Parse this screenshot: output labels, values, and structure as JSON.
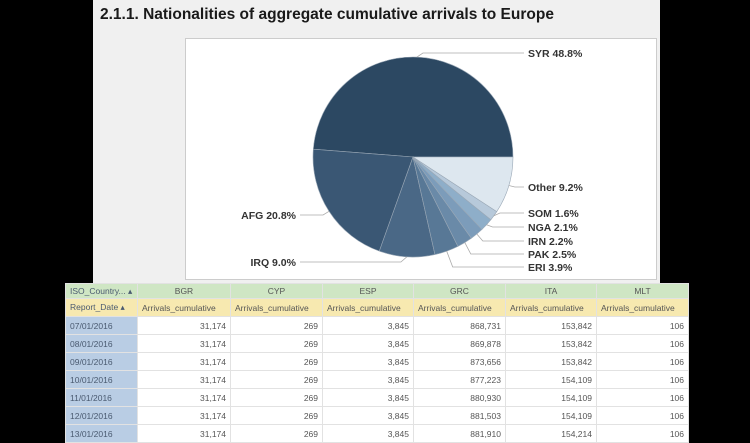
{
  "chart_data": {
    "type": "pie",
    "title": "2.1.1. Nationalities of aggregate cumulative arrivals to Europe",
    "slices": [
      {
        "label": "SYR",
        "value": 48.8,
        "text": "SYR 48.8%",
        "color": "#2c4862"
      },
      {
        "label": "AFG",
        "value": 20.8,
        "text": "AFG 20.8%",
        "color": "#3a5774"
      },
      {
        "label": "IRQ",
        "value": 9.0,
        "text": "IRQ 9.0%",
        "color": "#4a6886"
      },
      {
        "label": "ERI",
        "value": 3.9,
        "text": "ERI 3.9%",
        "color": "#587896"
      },
      {
        "label": "PAK",
        "value": 2.5,
        "text": "PAK 2.5%",
        "color": "#6a8aa8"
      },
      {
        "label": "IRN",
        "value": 2.2,
        "text": "IRN 2.2%",
        "color": "#7c9cba"
      },
      {
        "label": "NGA",
        "value": 2.1,
        "text": "NGA 2.1%",
        "color": "#8eaec9"
      },
      {
        "label": "SOM",
        "value": 1.6,
        "text": "SOM 1.6%",
        "color": "#b7c9da"
      },
      {
        "label": "Other",
        "value": 9.2,
        "text": "Other 9.2%",
        "color": "#dde7ef"
      }
    ]
  },
  "table": {
    "corner_top": "ISO_Country...",
    "corner_bottom": "Report_Date",
    "countries": [
      "BGR",
      "CYP",
      "ESP",
      "GRC",
      "ITA",
      "MLT"
    ],
    "measure": "Arrivals_cumulative",
    "rows": [
      {
        "date": "07/01/2016",
        "values": [
          "31,174",
          "269",
          "3,845",
          "868,731",
          "153,842",
          "106"
        ]
      },
      {
        "date": "08/01/2016",
        "values": [
          "31,174",
          "269",
          "3,845",
          "869,878",
          "153,842",
          "106"
        ]
      },
      {
        "date": "09/01/2016",
        "values": [
          "31,174",
          "269",
          "3,845",
          "873,656",
          "153,842",
          "106"
        ]
      },
      {
        "date": "10/01/2016",
        "values": [
          "31,174",
          "269",
          "3,845",
          "877,223",
          "154,109",
          "106"
        ]
      },
      {
        "date": "11/01/2016",
        "values": [
          "31,174",
          "269",
          "3,845",
          "880,930",
          "154,109",
          "106"
        ]
      },
      {
        "date": "12/01/2016",
        "values": [
          "31,174",
          "269",
          "3,845",
          "881,503",
          "154,109",
          "106"
        ]
      },
      {
        "date": "13/01/2016",
        "values": [
          "31,174",
          "269",
          "3,845",
          "881,910",
          "154,214",
          "106"
        ]
      }
    ]
  }
}
